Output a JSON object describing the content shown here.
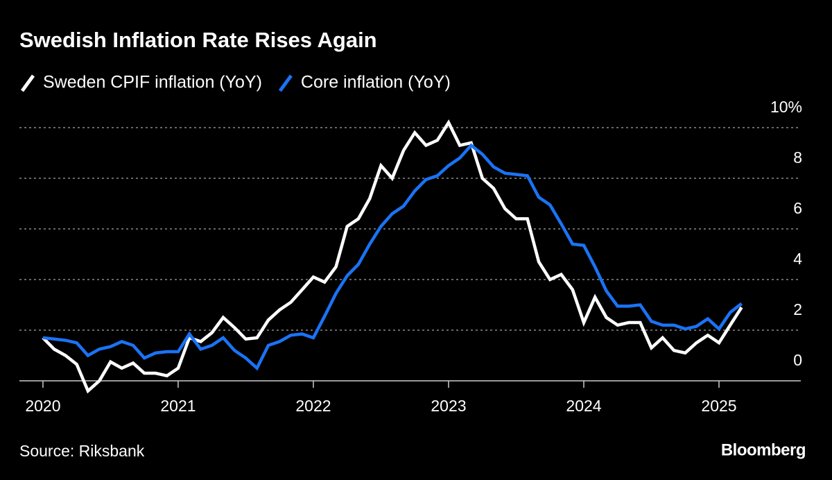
{
  "chart_data": {
    "type": "line",
    "title": "Swedish Inflation Rate Rises Again",
    "source": "Source: Riksbank",
    "brand": "Bloomberg",
    "x": [
      2020,
      2020.083,
      2020.167,
      2020.25,
      2020.333,
      2020.417,
      2020.5,
      2020.583,
      2020.667,
      2020.75,
      2020.833,
      2020.917,
      2021,
      2021.083,
      2021.167,
      2021.25,
      2021.333,
      2021.417,
      2021.5,
      2021.583,
      2021.667,
      2021.75,
      2021.833,
      2021.917,
      2022,
      2022.083,
      2022.167,
      2022.25,
      2022.333,
      2022.417,
      2022.5,
      2022.583,
      2022.667,
      2022.75,
      2022.833,
      2022.917,
      2023,
      2023.083,
      2023.167,
      2023.25,
      2023.333,
      2023.417,
      2023.5,
      2023.583,
      2023.667,
      2023.75,
      2023.833,
      2023.917,
      2024,
      2024.083,
      2024.167,
      2024.25,
      2024.333,
      2024.417,
      2024.5,
      2024.583,
      2024.667,
      2024.75,
      2024.833,
      2024.917,
      2025,
      2025.083,
      2025.167
    ],
    "series": [
      {
        "name": "Sweden CPIF inflation (YoY)",
        "color": "#ffffff",
        "values": [
          1.7,
          1.25,
          1.0,
          0.65,
          -0.4,
          0.0,
          0.75,
          0.5,
          0.7,
          0.3,
          0.3,
          0.2,
          0.5,
          1.7,
          1.55,
          1.9,
          2.5,
          2.1,
          1.65,
          1.7,
          2.4,
          2.8,
          3.1,
          3.6,
          4.1,
          3.9,
          4.5,
          6.1,
          6.4,
          7.2,
          8.5,
          8.0,
          9.1,
          9.8,
          9.3,
          9.5,
          10.2,
          9.3,
          9.4,
          8.0,
          7.6,
          6.8,
          6.4,
          6.4,
          4.7,
          4.0,
          4.2,
          3.6,
          2.3,
          3.3,
          2.5,
          2.2,
          2.3,
          2.3,
          1.3,
          1.7,
          1.2,
          1.1,
          1.5,
          1.8,
          1.5,
          2.2,
          2.9
        ]
      },
      {
        "name": "Core inflation (YoY)",
        "color": "#1a73f5",
        "values": [
          1.7,
          1.65,
          1.6,
          1.5,
          1.0,
          1.25,
          1.35,
          1.55,
          1.4,
          0.9,
          1.1,
          1.15,
          1.15,
          1.85,
          1.25,
          1.4,
          1.7,
          1.2,
          0.9,
          0.5,
          1.4,
          1.55,
          1.8,
          1.85,
          1.7,
          2.55,
          3.45,
          4.15,
          4.6,
          5.4,
          6.1,
          6.6,
          6.9,
          7.5,
          7.95,
          8.1,
          8.5,
          8.8,
          9.3,
          8.95,
          8.45,
          8.2,
          8.15,
          8.1,
          7.25,
          6.95,
          6.2,
          5.4,
          5.35,
          4.5,
          3.55,
          2.95,
          2.95,
          3.0,
          2.35,
          2.2,
          2.2,
          2.05,
          2.15,
          2.45,
          2.05,
          2.7,
          3.05
        ]
      }
    ],
    "xlim": [
      2019.826,
      2025.605
    ],
    "xticks": [
      2020,
      2021,
      2022,
      2023,
      2024,
      2025
    ],
    "ylim": [
      -0.6,
      10.4
    ],
    "yticks": [
      0,
      2,
      4,
      6,
      8,
      {
        "value": 10,
        "label": "10%"
      }
    ],
    "grid": true
  }
}
